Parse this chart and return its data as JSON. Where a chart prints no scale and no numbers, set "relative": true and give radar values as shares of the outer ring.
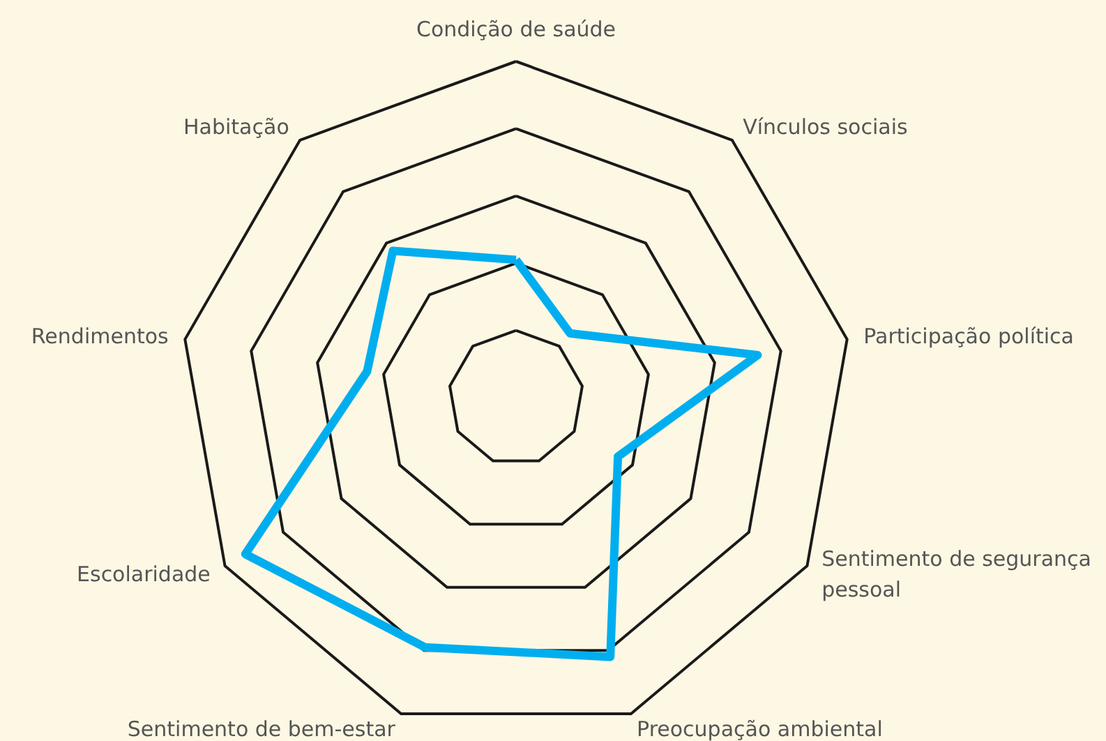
{
  "chart_data": {
    "type": "radar",
    "relative": true,
    "grid": true,
    "marker": "none",
    "line_style": "solid",
    "categories": [
      "Condição de saúde",
      "Vínculos sociais",
      "Participação política",
      "Sentimento de segurança pessoal",
      "Preocupação ambiental",
      "Sentimento de bem-estar",
      "Escolaridade",
      "Rendimentos",
      "Habitação"
    ],
    "series": [
      {
        "color": "#00aeef",
        "values": [
          0.41,
          0.25,
          0.73,
          0.35,
          0.82,
          0.79,
          0.93,
          0.45,
          0.57
        ]
      }
    ]
  }
}
